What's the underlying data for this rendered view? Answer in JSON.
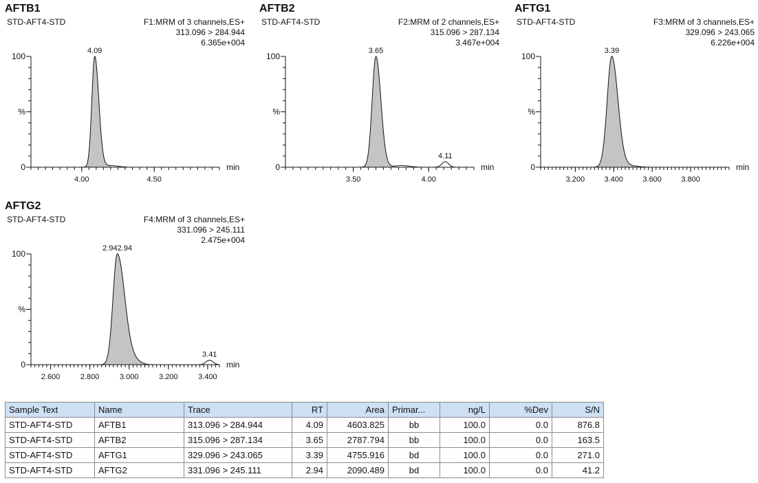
{
  "panels": [
    {
      "title": "AFTB1",
      "sample": "STD-AFT4-STD",
      "function": "F1:MRM of 3 channels,ES+",
      "transition": "313.096 > 284.944",
      "intensity": "6.365e+004",
      "x_unit": "min",
      "y_labels": [
        "100",
        "%",
        "0"
      ],
      "xlim": [
        3.65,
        4.95
      ],
      "ylim": [
        0,
        100
      ],
      "x_ticks": [
        {
          "value": 4.0,
          "label": "4.00"
        },
        {
          "value": 4.5,
          "label": "4.50"
        }
      ],
      "minor_step": 0.05,
      "peaks": [
        {
          "rt": 4.09,
          "height": 100,
          "sigma_left": 0.02,
          "sigma_right": 0.028
        }
      ],
      "baseline_bumps": [
        {
          "rt": 4.2,
          "height": 1.5,
          "sigma": 0.05
        }
      ],
      "peak_labels": [
        {
          "x": 4.09,
          "y": 100,
          "text": "4.09"
        }
      ]
    },
    {
      "title": "AFTB2",
      "sample": "STD-AFT4-STD",
      "function": "F2:MRM of 2 channels,ES+",
      "transition": "315.096 > 287.134",
      "intensity": "3.467e+004",
      "x_unit": "min",
      "y_labels": [
        "100",
        "%",
        "0"
      ],
      "xlim": [
        3.05,
        4.3
      ],
      "ylim": [
        0,
        100
      ],
      "x_ticks": [
        {
          "value": 3.5,
          "label": "3.50"
        },
        {
          "value": 4.0,
          "label": "4.00"
        }
      ],
      "minor_step": 0.05,
      "peaks": [
        {
          "rt": 3.65,
          "height": 100,
          "sigma_left": 0.025,
          "sigma_right": 0.033
        }
      ],
      "baseline_bumps": [
        {
          "rt": 3.82,
          "height": 1.5,
          "sigma": 0.05
        },
        {
          "rt": 4.11,
          "height": 5,
          "sigma": 0.022
        }
      ],
      "peak_labels": [
        {
          "x": 3.65,
          "y": 100,
          "text": "3.65"
        },
        {
          "x": 4.11,
          "y": 5,
          "text": "4.11"
        }
      ]
    },
    {
      "title": "AFTG1",
      "sample": "STD-AFT4-STD",
      "function": "F3:MRM of 3 channels,ES+",
      "transition": "329.096 > 243.065",
      "intensity": "6.226e+004",
      "x_unit": "min",
      "y_labels": [
        "100",
        "%",
        "0"
      ],
      "xlim": [
        3.02,
        4.0
      ],
      "ylim": [
        0,
        100
      ],
      "x_ticks": [
        {
          "value": 3.2,
          "label": "3.200"
        },
        {
          "value": 3.4,
          "label": "3.400"
        },
        {
          "value": 3.6,
          "label": "3.600"
        },
        {
          "value": 3.8,
          "label": "3.800"
        }
      ],
      "minor_step": 0.02,
      "peaks": [
        {
          "rt": 3.39,
          "height": 100,
          "sigma_left": 0.024,
          "sigma_right": 0.032
        }
      ],
      "baseline_bumps": [
        {
          "rt": 3.48,
          "height": 1.5,
          "sigma": 0.04
        }
      ],
      "peak_labels": [
        {
          "x": 3.39,
          "y": 100,
          "text": "3.39"
        }
      ]
    },
    {
      "title": "AFTG2",
      "sample": "STD-AFT4-STD",
      "function": "F4:MRM of 3 channels,ES+",
      "transition": "331.096 > 245.111",
      "intensity": "2.475e+004",
      "x_unit": "min",
      "y_labels": [
        "100",
        "%",
        "0"
      ],
      "xlim": [
        2.5,
        3.46
      ],
      "ylim": [
        0,
        100
      ],
      "x_ticks": [
        {
          "value": 2.6,
          "label": "2.600"
        },
        {
          "value": 2.8,
          "label": "2.800"
        },
        {
          "value": 3.0,
          "label": "3.000"
        },
        {
          "value": 3.2,
          "label": "3.200"
        },
        {
          "value": 3.4,
          "label": "3.400"
        }
      ],
      "minor_step": 0.02,
      "peaks": [
        {
          "rt": 2.94,
          "height": 100,
          "sigma_left": 0.022,
          "sigma_right": 0.038
        }
      ],
      "baseline_bumps": [
        {
          "rt": 3.03,
          "height": 3,
          "sigma": 0.03
        },
        {
          "rt": 3.41,
          "height": 4,
          "sigma": 0.018
        }
      ],
      "peak_labels": [
        {
          "x": 2.94,
          "y": 100,
          "text": "2.942.94"
        },
        {
          "x": 3.41,
          "y": 4,
          "text": "3.41"
        }
      ]
    }
  ],
  "table": {
    "headers": [
      "Sample Text",
      "Name",
      "Trace",
      "RT",
      "Area",
      "Primar...",
      "ng/L",
      "%Dev",
      "S/N"
    ],
    "rows": [
      [
        "STD-AFT4-STD",
        "AFTB1",
        "313.096 > 284.944",
        "4.09",
        "4603.825",
        "bb",
        "100.0",
        "0.0",
        "876.8"
      ],
      [
        "STD-AFT4-STD",
        "AFTB2",
        "315.096 > 287.134",
        "3.65",
        "2787.794",
        "bb",
        "100.0",
        "0.0",
        "163.5"
      ],
      [
        "STD-AFT4-STD",
        "AFTG1",
        "329.096 > 243.065",
        "3.39",
        "4755.916",
        "bd",
        "100.0",
        "0.0",
        "271.0"
      ],
      [
        "STD-AFT4-STD",
        "AFTG2",
        "331.096 > 245.111",
        "2.94",
        "2090.489",
        "bd",
        "100.0",
        "0.0",
        "41.2"
      ]
    ]
  },
  "chart_data": [
    {
      "type": "line",
      "title": "AFTB1",
      "series": [
        {
          "name": "313.096 > 284.944",
          "x": [
            4.09
          ],
          "values": [
            100
          ]
        }
      ],
      "xlabel": "min",
      "ylabel": "%",
      "xlim": [
        3.65,
        4.95
      ],
      "ylim": [
        0,
        100
      ]
    },
    {
      "type": "line",
      "title": "AFTB2",
      "series": [
        {
          "name": "315.096 > 287.134",
          "x": [
            3.65,
            4.11
          ],
          "values": [
            100,
            5
          ]
        }
      ],
      "xlabel": "min",
      "ylabel": "%",
      "xlim": [
        3.05,
        4.3
      ],
      "ylim": [
        0,
        100
      ]
    },
    {
      "type": "line",
      "title": "AFTG1",
      "series": [
        {
          "name": "329.096 > 243.065",
          "x": [
            3.39
          ],
          "values": [
            100
          ]
        }
      ],
      "xlabel": "min",
      "ylabel": "%",
      "xlim": [
        3.02,
        4.0
      ],
      "ylim": [
        0,
        100
      ]
    },
    {
      "type": "line",
      "title": "AFTG2",
      "series": [
        {
          "name": "331.096 > 245.111",
          "x": [
            2.94,
            3.41
          ],
          "values": [
            100,
            4
          ]
        }
      ],
      "xlabel": "min",
      "ylabel": "%",
      "xlim": [
        2.5,
        3.46
      ],
      "ylim": [
        0,
        100
      ]
    }
  ]
}
